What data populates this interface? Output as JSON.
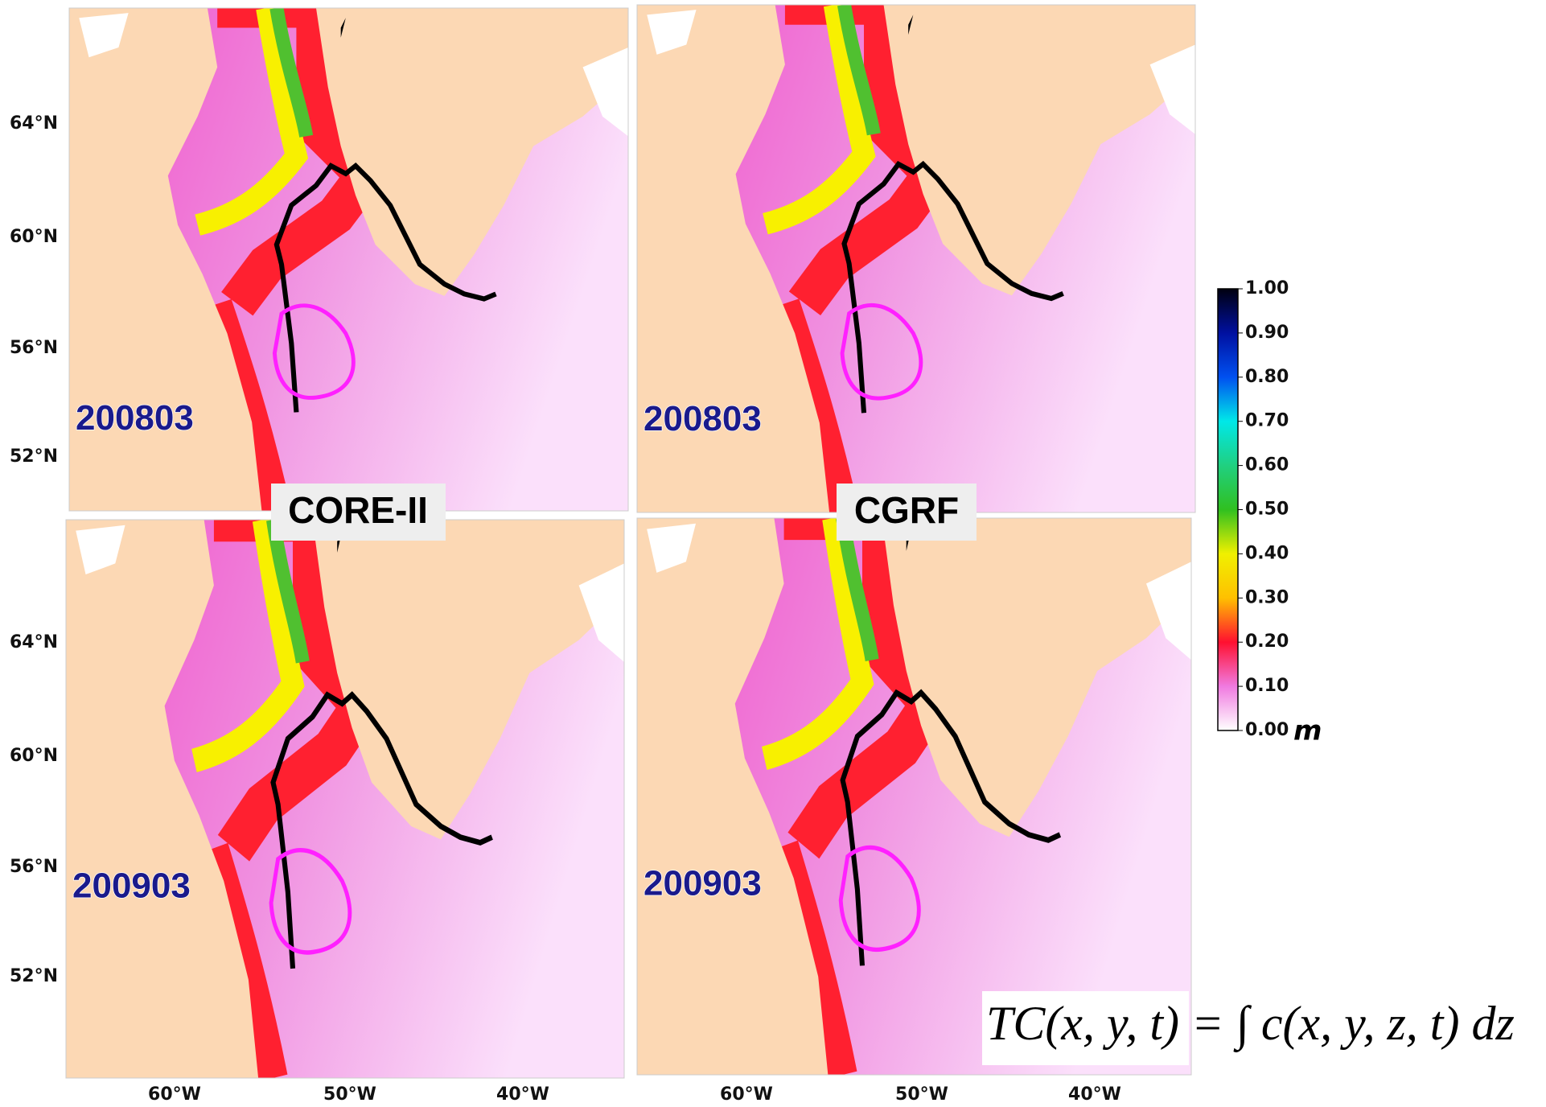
{
  "panels": [
    {
      "model": "CORE-II",
      "date": "200803"
    },
    {
      "model": "CGRF",
      "date": "200803"
    },
    {
      "model": "CORE-II",
      "date": "200903"
    },
    {
      "model": "CGRF",
      "date": "200903"
    }
  ],
  "titles": [
    "CORE-II",
    "CGRF"
  ],
  "lat_labels": [
    "64°N",
    "60°N",
    "56°N",
    "52°N"
  ],
  "lon_labels": [
    "60°W",
    "50°W",
    "40°W"
  ],
  "colorbar": {
    "unit": "m",
    "ticks": [
      {
        "value": 0,
        "label": "0.00"
      },
      {
        "value": 0.1,
        "label": "0.10"
      },
      {
        "value": 0.2,
        "label": "0.20"
      },
      {
        "value": 0.3,
        "label": "0.30"
      },
      {
        "value": 0.4,
        "label": "0.40"
      },
      {
        "value": 0.5,
        "label": "0.50"
      },
      {
        "value": 0.6,
        "label": "0.60"
      },
      {
        "value": 0.7,
        "label": "0.70"
      },
      {
        "value": 0.8,
        "label": "0.80"
      },
      {
        "value": 0.9,
        "label": "0.90"
      },
      {
        "value": 1,
        "label": "1.00"
      }
    ]
  },
  "formula": "TC(x, y, t)  = ∫ c(x, y, z, t) dz"
}
